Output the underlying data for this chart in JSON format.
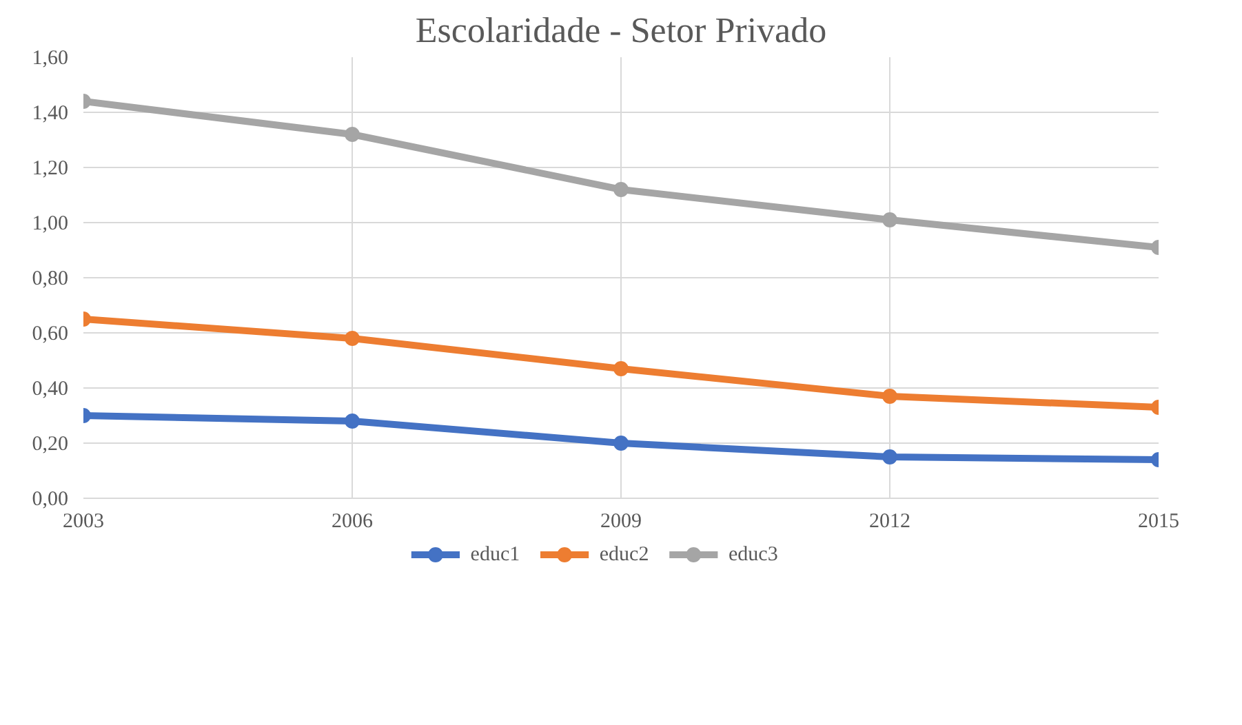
{
  "chart_data": {
    "type": "line",
    "title": "Escolaridade - Setor Privado",
    "x": [
      2003,
      2006,
      2009,
      2012,
      2015
    ],
    "series": [
      {
        "name": "educ1",
        "color": "#4472c4",
        "values": [
          0.3,
          0.28,
          0.2,
          0.15,
          0.14
        ]
      },
      {
        "name": "educ2",
        "color": "#ed7d31",
        "values": [
          0.65,
          0.58,
          0.47,
          0.37,
          0.33
        ]
      },
      {
        "name": "educ3",
        "color": "#a5a5a5",
        "values": [
          1.44,
          1.32,
          1.12,
          1.01,
          0.91
        ]
      }
    ],
    "xlim": [
      2003,
      2015
    ],
    "xticks": [
      2003,
      2006,
      2009,
      2012,
      2015
    ],
    "ylim": [
      0,
      1.6
    ],
    "yticks": [
      {
        "value": 0,
        "label": "0,00"
      },
      {
        "value": 0.2,
        "label": "0,20"
      },
      {
        "value": 0.4,
        "label": "0,40"
      },
      {
        "value": 0.6,
        "label": "0,60"
      },
      {
        "value": 0.8,
        "label": "0,80"
      },
      {
        "value": 1.0,
        "label": "1,00"
      },
      {
        "value": 1.2,
        "label": "1,20"
      },
      {
        "value": 1.4,
        "label": "1,40"
      },
      {
        "value": 1.6,
        "label": "1,60"
      }
    ],
    "grid": true,
    "legend": "bottom",
    "marker": "circle",
    "line_style": "solid"
  }
}
